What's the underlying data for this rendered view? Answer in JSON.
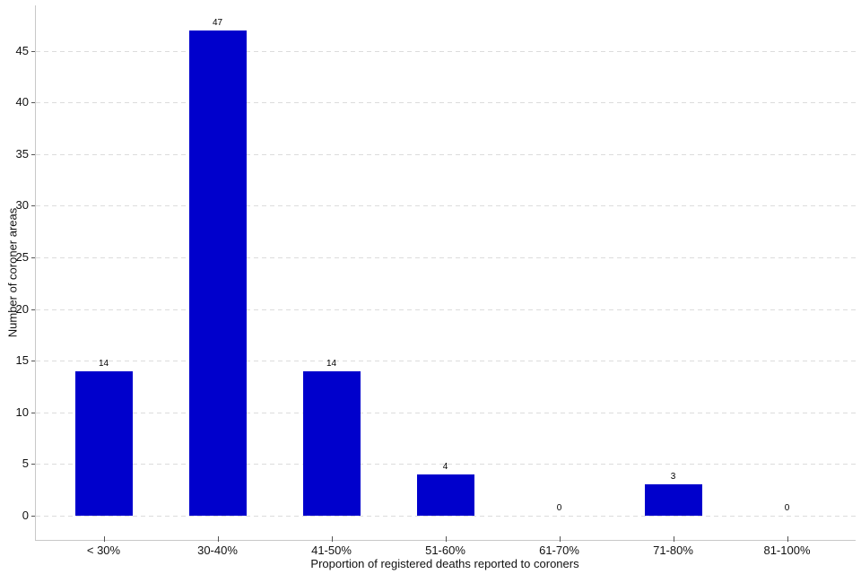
{
  "figure": {
    "background": "#FFFFFF"
  },
  "chart_data": {
    "type": "bar",
    "title": "",
    "categories": [
      "< 30%",
      "30-40%",
      "41-50%",
      "51-60%",
      "61-70%",
      "71-80%",
      "81-100%"
    ],
    "values": [
      14,
      47,
      14,
      4,
      0,
      3,
      0
    ],
    "bar_labels": [
      "14",
      "47",
      "14",
      "4",
      "0",
      "3",
      "0"
    ],
    "xlabel": "Proportion of registered deaths reported to coroners",
    "ylabel": "Number of coroner areas",
    "yticks": [
      0,
      5,
      10,
      15,
      20,
      25,
      30,
      35,
      40,
      45
    ],
    "ylim": [
      0,
      49.6
    ],
    "bar_color": "#0000CC",
    "gridline_color": "#DCDCDC",
    "axis_line_color": "#C8C8C8",
    "tick_color": "#555555",
    "text_color": "#111111",
    "grid": "horizontal-dashed",
    "legend": "none"
  }
}
